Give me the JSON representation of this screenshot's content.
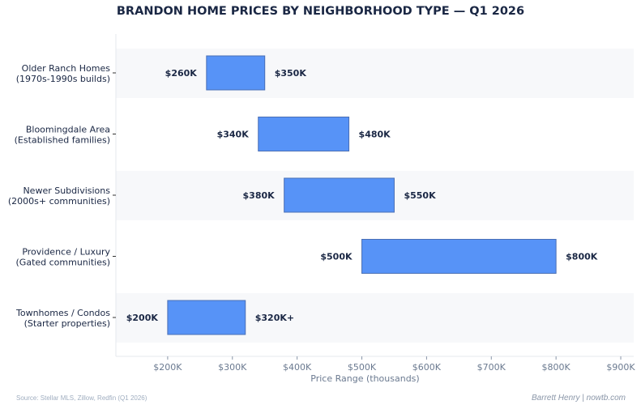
{
  "chart_data": {
    "type": "bar",
    "subtype": "floating-range-horizontal",
    "title": "BRANDON HOME PRICES BY NEIGHBORHOOD TYPE — Q1 2026",
    "xlabel": "Price Range (thousands)",
    "ylabel": "",
    "xlim": [
      120,
      920
    ],
    "x_ticks": [
      200,
      300,
      400,
      500,
      600,
      700,
      800,
      900
    ],
    "x_tick_labels": [
      "$200K",
      "$300K",
      "$400K",
      "$500K",
      "$600K",
      "$700K",
      "$800K",
      "$900K"
    ],
    "grid": false,
    "bar_color": "#5793f7",
    "bar_edge_color": "#4a6fb5",
    "band_color": "#f7f8fa",
    "categories": [
      [
        "Older Ranch Homes",
        "(1970s-1990s builds)"
      ],
      [
        "Bloomingdale Area",
        "(Established families)"
      ],
      [
        "Newer Subdivisions",
        "(2000s+ communities)"
      ],
      [
        "Providence / Luxury",
        "(Gated communities)"
      ],
      [
        "Townhomes / Condos",
        "(Starter properties)"
      ]
    ],
    "low": [
      260,
      340,
      380,
      500,
      200
    ],
    "high": [
      350,
      480,
      550,
      800,
      320
    ],
    "low_labels": [
      "$260K",
      "$340K",
      "$380K",
      "$500K",
      "$200K"
    ],
    "high_labels": [
      "$350K",
      "$480K",
      "$550K",
      "$800K",
      "$320K+"
    ]
  },
  "footer": {
    "source": "Source: Stellar MLS, Zillow, Redfin (Q1 2026)",
    "credit": "Barrett Henry | nowtb.com"
  }
}
